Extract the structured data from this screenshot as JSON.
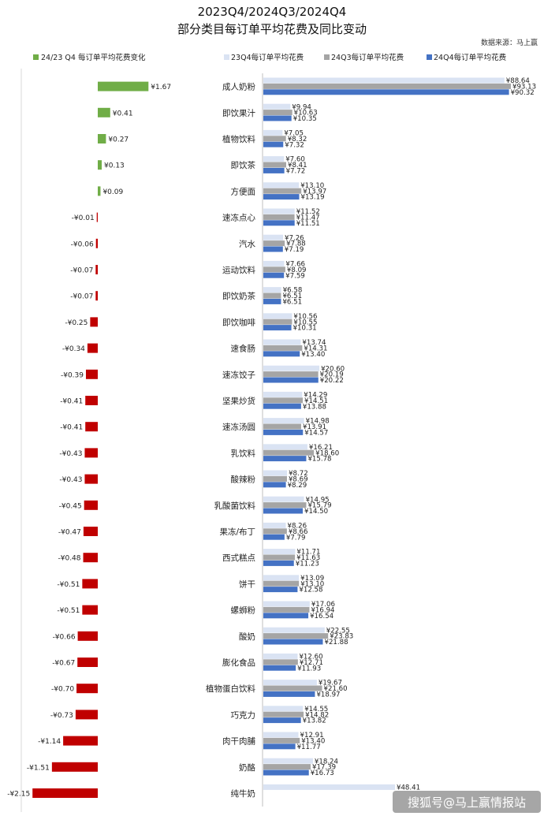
{
  "header": {
    "title_line1": "2023Q4/2024Q3/2024Q4",
    "title_line2": "部分类目每订单平均花费及同比变动",
    "source": "数据来源：马上赢"
  },
  "legend": {
    "change": "24/23 Q4 每订单平均花费变化",
    "s23q4": "23Q4每订单平均花费",
    "s24q3": "24Q3每订单平均花费",
    "s24q4": "24Q4每订单平均花费"
  },
  "watermark": "搜狐号@马上赢情报站",
  "colors": {
    "positive": "#70ad47",
    "negative": "#c00000",
    "s23q4": "#dae3f3",
    "s24q3": "#a5a5a5",
    "s24q4": "#4472c4"
  },
  "chart_data": [
    {
      "type": "bar",
      "orientation": "horizontal",
      "title": "24/23 Q4 每订单平均花费变化",
      "categories": [
        "成人奶粉",
        "即饮果汁",
        "植物饮料",
        "即饮茶",
        "方便面",
        "速冻点心",
        "汽水",
        "运动饮料",
        "即饮奶茶",
        "即饮咖啡",
        "速食肠",
        "速冻饺子",
        "坚果炒货",
        "速冻汤圆",
        "乳饮料",
        "酸辣粉",
        "乳酸菌饮料",
        "果冻/布丁",
        "西式糕点",
        "饼干",
        "螺蛳粉",
        "酸奶",
        "膨化食品",
        "植物蛋白饮料",
        "巧克力",
        "肉干肉脯",
        "奶酪",
        "纯牛奶"
      ],
      "values": [
        1.67,
        0.41,
        0.27,
        0.13,
        0.09,
        -0.01,
        -0.06,
        -0.07,
        -0.07,
        -0.25,
        -0.34,
        -0.39,
        -0.41,
        -0.41,
        -0.43,
        -0.43,
        -0.45,
        -0.47,
        -0.48,
        -0.51,
        -0.51,
        -0.66,
        -0.67,
        -0.7,
        -0.73,
        -1.14,
        -1.51,
        -2.15
      ],
      "labels": [
        "¥1.67",
        "¥0.41",
        "¥0.27",
        "¥0.13",
        "¥0.09",
        "-¥0.01",
        "-¥0.06",
        "-¥0.07",
        "-¥0.07",
        "-¥0.25",
        "-¥0.34",
        "-¥0.39",
        "-¥0.41",
        "-¥0.41",
        "-¥0.43",
        "-¥0.43",
        "-¥0.45",
        "-¥0.47",
        "-¥0.48",
        "-¥0.51",
        "-¥0.51",
        "-¥0.66",
        "-¥0.67",
        "-¥0.70",
        "-¥0.73",
        "-¥1.14",
        "-¥1.51",
        "-¥2.15"
      ]
    },
    {
      "type": "bar",
      "orientation": "horizontal",
      "categories": [
        "成人奶粉",
        "即饮果汁",
        "植物饮料",
        "即饮茶",
        "方便面",
        "速冻点心",
        "汽水",
        "运动饮料",
        "即饮奶茶",
        "即饮咖啡",
        "速食肠",
        "速冻饺子",
        "坚果炒货",
        "速冻汤圆",
        "乳饮料",
        "酸辣粉",
        "乳酸菌饮料",
        "果冻/布丁",
        "西式糕点",
        "饼干",
        "螺蛳粉",
        "酸奶",
        "膨化食品",
        "植物蛋白饮料",
        "巧克力",
        "肉干肉脯",
        "奶酪",
        "纯牛奶"
      ],
      "series": [
        {
          "name": "23Q4每订单平均花费",
          "values": [
            88.64,
            9.94,
            7.05,
            7.6,
            13.1,
            11.52,
            7.26,
            7.66,
            6.58,
            10.56,
            13.74,
            20.6,
            14.29,
            14.98,
            16.21,
            8.72,
            14.95,
            8.26,
            11.71,
            13.09,
            17.06,
            22.55,
            12.6,
            19.67,
            14.55,
            12.91,
            18.24,
            48.41
          ],
          "labels": [
            "¥88.64",
            "¥9.94",
            "¥7.05",
            "¥7.60",
            "¥13.10",
            "¥11.52",
            "¥7.26",
            "¥7.66",
            "¥6.58",
            "¥10.56",
            "¥13.74",
            "¥20.60",
            "¥14.29",
            "¥14.98",
            "¥16.21",
            "¥8.72",
            "¥14.95",
            "¥8.26",
            "¥11.71",
            "¥13.09",
            "¥17.06",
            "¥22.55",
            "¥12.60",
            "¥19.67",
            "¥14.55",
            "¥12.91",
            "¥18.24",
            "¥48.41"
          ]
        },
        {
          "name": "24Q3每订单平均花费",
          "values": [
            93.13,
            10.63,
            8.32,
            8.41,
            13.97,
            11.47,
            7.88,
            8.09,
            6.51,
            10.55,
            14.31,
            20.19,
            14.51,
            13.91,
            18.6,
            8.69,
            15.79,
            8.66,
            11.63,
            13.1,
            16.94,
            23.83,
            12.71,
            21.6,
            14.82,
            13.4,
            17.39,
            null
          ],
          "labels": [
            "¥93.13",
            "¥10.63",
            "¥8.32",
            "¥8.41",
            "¥13.97",
            "¥11.47",
            "¥7.88",
            "¥8.09",
            "¥6.51",
            "¥10.55",
            "¥14.31",
            "¥20.19",
            "¥14.51",
            "¥13.91",
            "¥18.60",
            "¥8.69",
            "¥15.79",
            "¥8.66",
            "¥11.63",
            "¥13.10",
            "¥16.94",
            "¥23.83",
            "¥12.71",
            "¥21.60",
            "¥14.82",
            "¥13.40",
            "¥17.39",
            ""
          ]
        },
        {
          "name": "24Q4每订单平均花费",
          "values": [
            90.32,
            10.35,
            7.32,
            7.72,
            13.19,
            11.51,
            7.19,
            7.59,
            6.51,
            10.31,
            13.4,
            20.22,
            13.88,
            14.57,
            15.78,
            8.29,
            14.5,
            7.79,
            11.23,
            12.58,
            16.54,
            21.88,
            11.93,
            18.97,
            13.82,
            11.77,
            16.73,
            null
          ],
          "labels": [
            "¥90.32",
            "¥10.35",
            "¥7.32",
            "¥7.72",
            "¥13.19",
            "¥11.51",
            "¥7.19",
            "¥7.59",
            "¥6.51",
            "¥10.31",
            "¥13.40",
            "¥20.22",
            "¥13.88",
            "¥14.57",
            "¥15.78",
            "¥8.29",
            "¥14.50",
            "¥7.79",
            "¥11.23",
            "¥12.58",
            "¥16.54",
            "¥21.88",
            "¥11.93",
            "¥18.97",
            "¥13.82",
            "¥11.77",
            "¥16.73",
            ""
          ]
        }
      ]
    }
  ]
}
